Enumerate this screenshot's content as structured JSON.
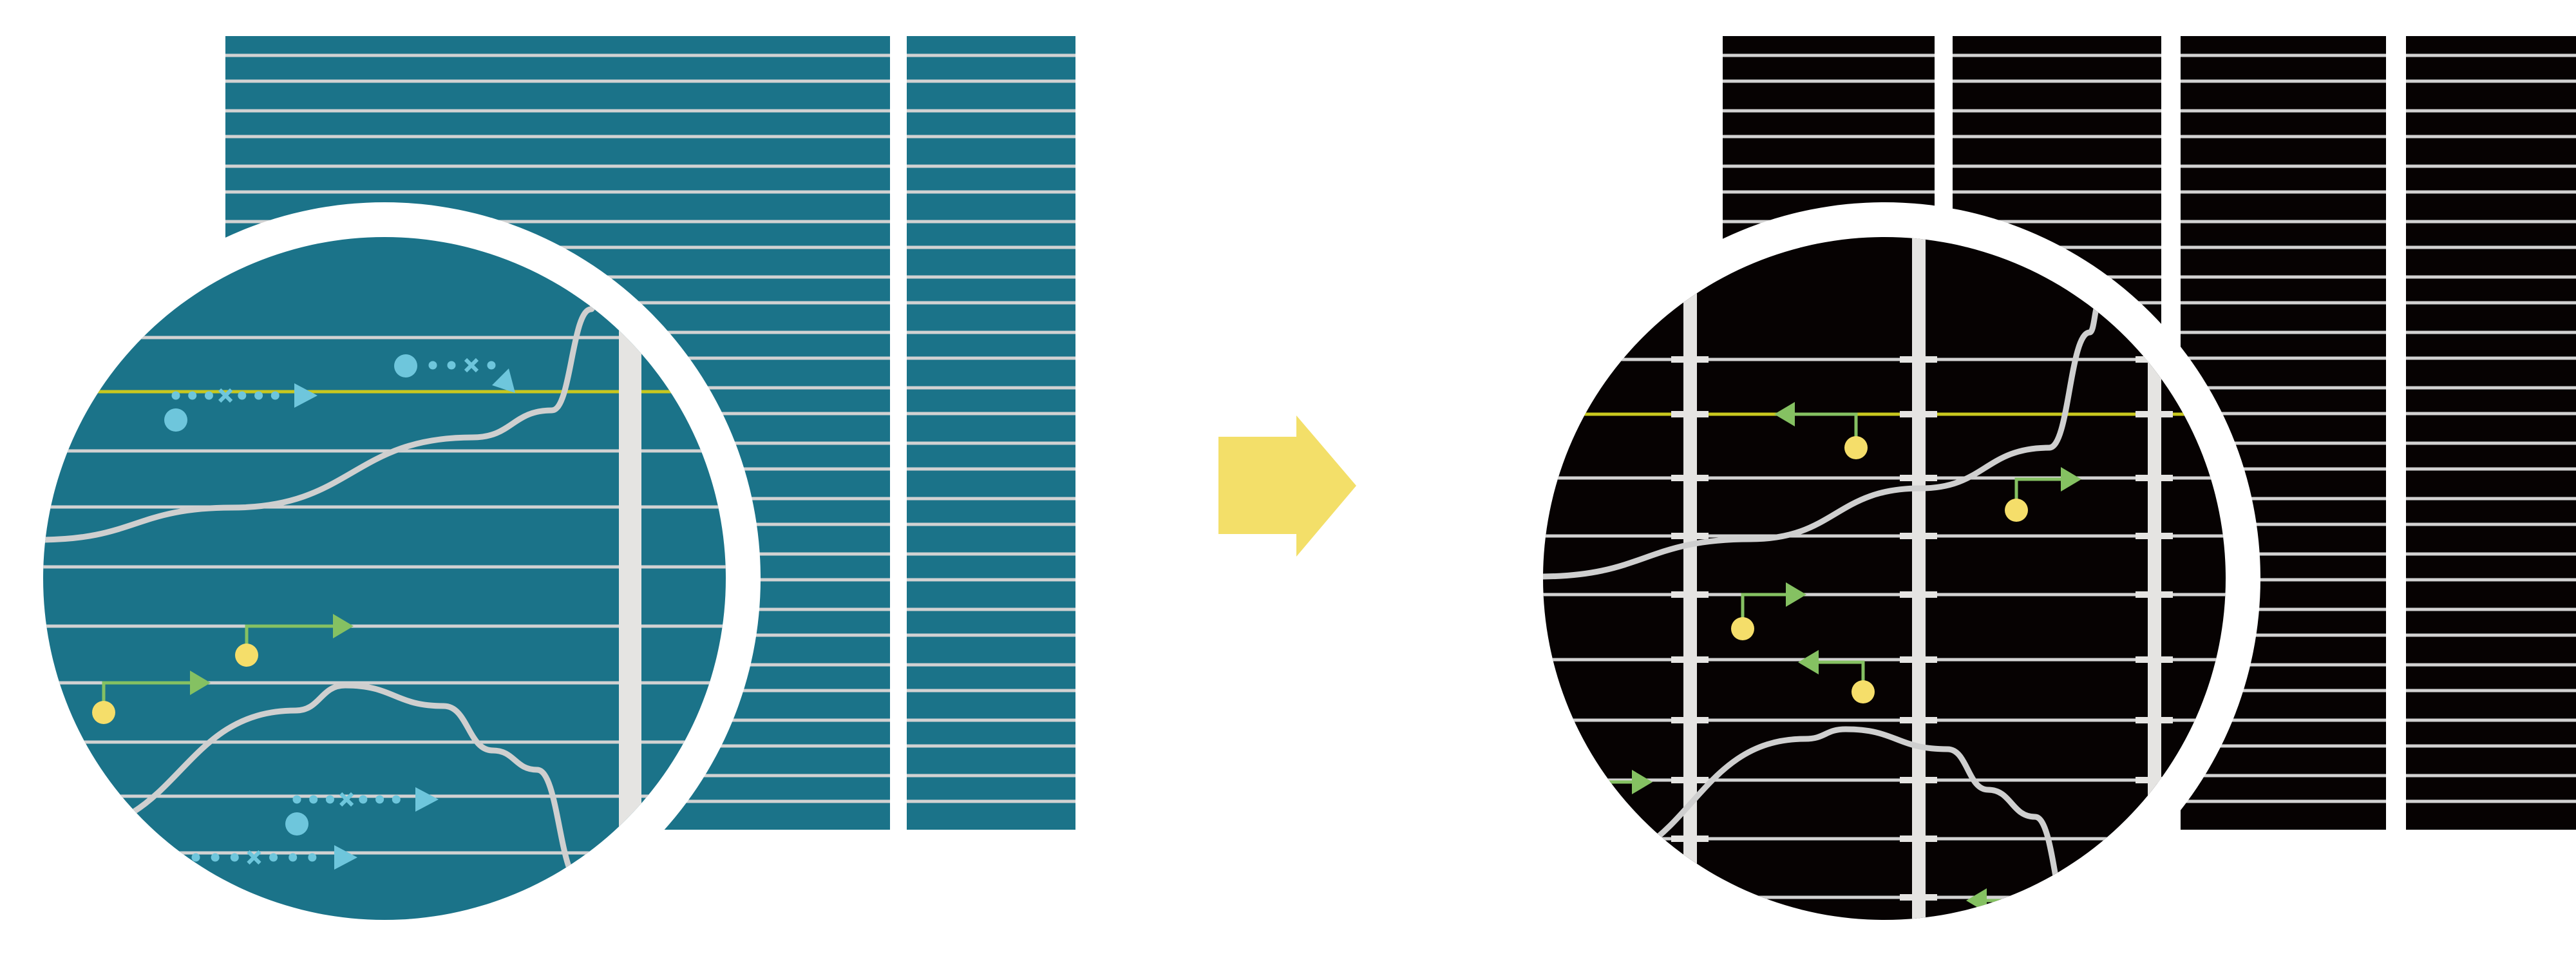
{
  "diagram": {
    "left_panel": {
      "background_color": "#1b7389",
      "icon": "magnified-striped-panel"
    },
    "transition": {
      "icon": "arrow-right-icon",
      "color": "#f3df69"
    },
    "right_panel": {
      "background_color": "#060202",
      "icon": "magnified-gridded-panel"
    },
    "colors": {
      "stripe": "#d2d2d2",
      "bar": "#e5e4e2",
      "highlight_line": "#c8c81e",
      "dotted_arrow": "#6ec6dc",
      "green_arrow": "#85c162",
      "marker_dot": "#f5de6a",
      "curve": "#cfcfcf",
      "ring": "#ffffff"
    }
  }
}
